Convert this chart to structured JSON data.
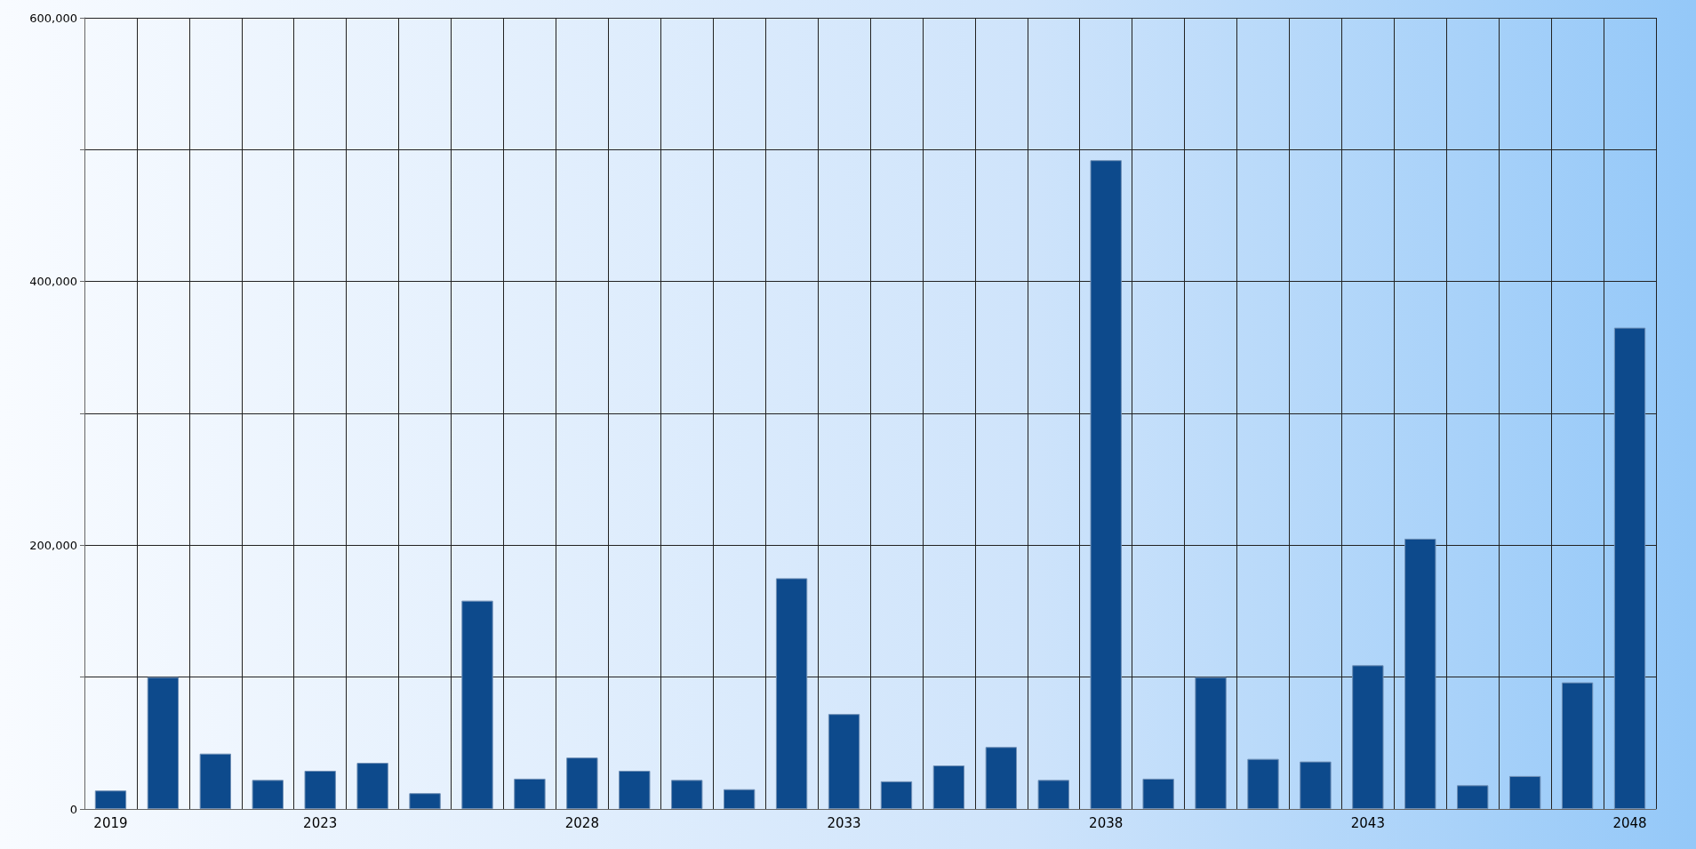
{
  "chart_data": {
    "type": "bar",
    "categories": [
      "2019",
      null,
      null,
      null,
      "2023",
      null,
      null,
      null,
      null,
      "2028",
      null,
      null,
      null,
      null,
      "2033",
      null,
      null,
      null,
      null,
      "2038",
      null,
      null,
      null,
      null,
      "2043",
      null,
      null,
      null,
      null,
      "2048"
    ],
    "values": [
      14000,
      100000,
      42000,
      22000,
      29000,
      35000,
      12000,
      158000,
      23000,
      39000,
      29000,
      22000,
      15000,
      175000,
      72000,
      21000,
      33000,
      47000,
      22000,
      492000,
      23000,
      100000,
      38000,
      36000,
      109000,
      205000,
      18000,
      25000,
      96000,
      365000
    ],
    "color": "#0d4a8c",
    "ylim": [
      0,
      600000
    ],
    "yticks": [
      0,
      {
        "value": 100000,
        "label": null
      },
      {
        "value": 200000,
        "label": "200,000"
      },
      {
        "value": 300000,
        "label": null
      },
      {
        "value": 400000,
        "label": "400,000"
      },
      {
        "value": 500000,
        "label": null
      },
      {
        "value": 600000,
        "label": "600,000"
      }
    ],
    "grid": true
  }
}
